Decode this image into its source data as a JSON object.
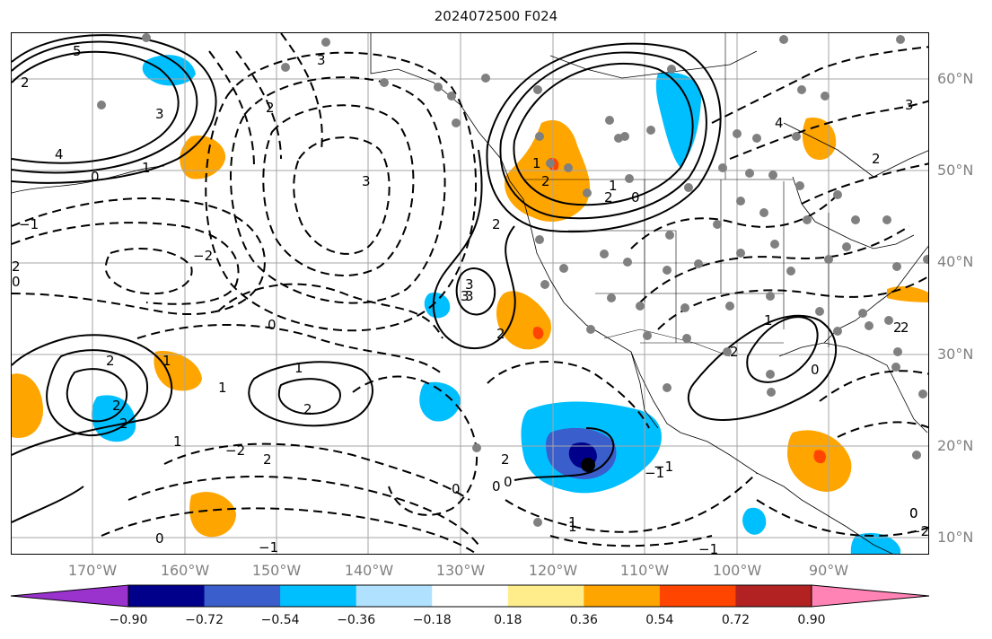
{
  "title": "2024072500 F024",
  "lat_labels": [
    "60°N",
    "50°N",
    "40°N",
    "30°N",
    "20°N",
    "10°N"
  ],
  "lon_labels": [
    "170°W",
    "160°W",
    "150°W",
    "140°W",
    "130°W",
    "120°W",
    "110°W",
    "100°W",
    "90°W"
  ],
  "colorbar": {
    "ticks": [
      "−0.90",
      "−0.72",
      "−0.54",
      "−0.36",
      "−0.18",
      "0.18",
      "0.36",
      "0.54",
      "0.72",
      "0.90"
    ],
    "colors": [
      "#9a32cd",
      "#00008b",
      "#3a5fcd",
      "#00bfff",
      "#b0e2ff",
      "#ffffff",
      "#ffec8b",
      "#ffa500",
      "#ff4500",
      "#b22222",
      "#ff83b4"
    ]
  },
  "contour_labels": [
    "5",
    "3",
    "2",
    "1",
    "0",
    "−1",
    "−2",
    "4",
    "3",
    "2",
    "1",
    "0",
    "2",
    "2",
    "1",
    "0",
    "2",
    "1",
    "2",
    "3",
    "2",
    "2",
    "1",
    "0",
    "−1",
    "0",
    "2",
    "1",
    "2",
    "0",
    "1",
    "3",
    "2",
    "0",
    "−1",
    "2",
    "0",
    "−1",
    "−2",
    "3",
    "2",
    "1",
    "0",
    "−2",
    "4",
    "3",
    "2",
    "1",
    "2",
    "0",
    "−1",
    "2",
    "3",
    "0",
    "1",
    "2"
  ]
}
